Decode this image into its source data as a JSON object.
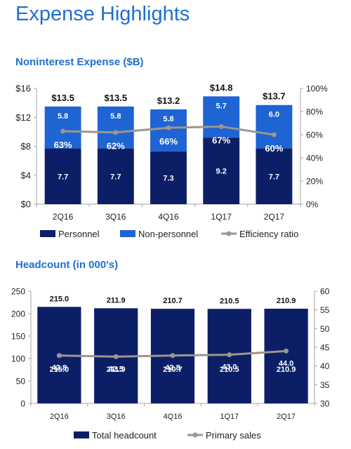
{
  "page": {
    "title": "Expense Highlights"
  },
  "colors": {
    "title_blue": "#1f6fd1",
    "navy": "#0c1f66",
    "mid_blue": "#1e64d2",
    "gray_line": "#9d968c",
    "axis": "#a6a6a6"
  },
  "chart_data": [
    {
      "type": "bar",
      "stacked": true,
      "title": "Noninterest Expense ($B)",
      "categories": [
        "2Q16",
        "3Q16",
        "4Q16",
        "1Q17",
        "2Q17"
      ],
      "series": [
        {
          "name": "Personnel",
          "values": [
            7.7,
            7.7,
            7.3,
            9.2,
            7.7
          ],
          "labels": [
            "7.7",
            "7.7",
            "7.3",
            "9.2",
            "7.7"
          ],
          "color": "#0c1f66"
        },
        {
          "name": "Non-personnel",
          "values": [
            5.8,
            5.8,
            5.8,
            5.7,
            6.0
          ],
          "labels": [
            "5.8",
            "5.8",
            "5.8",
            "5.7",
            "6.0"
          ],
          "color": "#1e64d2"
        }
      ],
      "totals": [
        "$13.5",
        "$13.5",
        "$13.2",
        "$14.8",
        "$13.7"
      ],
      "line_series": {
        "name": "Efficiency ratio",
        "values": [
          63,
          62,
          66,
          67,
          60
        ],
        "labels": [
          "63%",
          "62%",
          "66%",
          "67%",
          "60%"
        ],
        "axis": "right",
        "color": "#9d968c"
      },
      "ylim": [
        0,
        16
      ],
      "yticks": [
        0,
        4,
        8,
        12,
        16
      ],
      "ytick_labels": [
        "$0",
        "$4",
        "$8",
        "$12",
        "$16"
      ],
      "y2lim": [
        0,
        100
      ],
      "y2ticks": [
        0,
        20,
        40,
        60,
        80,
        100
      ],
      "y2tick_labels": [
        "0%",
        "20%",
        "40%",
        "60%",
        "80%",
        "100%"
      ],
      "legend": [
        {
          "label": "Personnel",
          "kind": "box",
          "color": "#0c1f66"
        },
        {
          "label": "Non-personnel",
          "kind": "box",
          "color": "#1e64d2"
        },
        {
          "label": "Efficiency ratio",
          "kind": "line",
          "color": "#9d968c"
        }
      ],
      "legend_position": "bottom",
      "grid": false
    },
    {
      "type": "bar",
      "title": "Headcount (in 000's)",
      "categories": [
        "2Q16",
        "3Q16",
        "4Q16",
        "1Q17",
        "2Q17"
      ],
      "series": [
        {
          "name": "Total headcount",
          "values": [
            215.0,
            211.9,
            210.7,
            210.5,
            210.9
          ],
          "labels": [
            "215.0",
            "211.9",
            "210.7",
            "210.5",
            "210.9"
          ],
          "color": "#0c1f66"
        }
      ],
      "line_series": {
        "name": "Primary sales",
        "values": [
          42.8,
          42.5,
          42.8,
          43.0,
          44.0
        ],
        "labels": [
          "42.8",
          "42.5",
          "42.8",
          "43.0",
          "44.0"
        ],
        "axis": "right",
        "color": "#9d968c"
      },
      "ylim": [
        0,
        250
      ],
      "yticks": [
        0,
        50,
        100,
        150,
        200,
        250
      ],
      "ytick_labels": [
        "0",
        "50",
        "100",
        "150",
        "200",
        "250"
      ],
      "y2lim": [
        30,
        60
      ],
      "y2ticks": [
        30,
        35,
        40,
        45,
        50,
        55,
        60
      ],
      "y2tick_labels": [
        "30",
        "35",
        "40",
        "45",
        "50",
        "55",
        "60"
      ],
      "legend": [
        {
          "label": "Total headcount",
          "kind": "box",
          "color": "#0c1f66"
        },
        {
          "label": "Primary sales",
          "kind": "line",
          "color": "#9d968c"
        }
      ],
      "legend_position": "bottom",
      "grid": false
    }
  ]
}
